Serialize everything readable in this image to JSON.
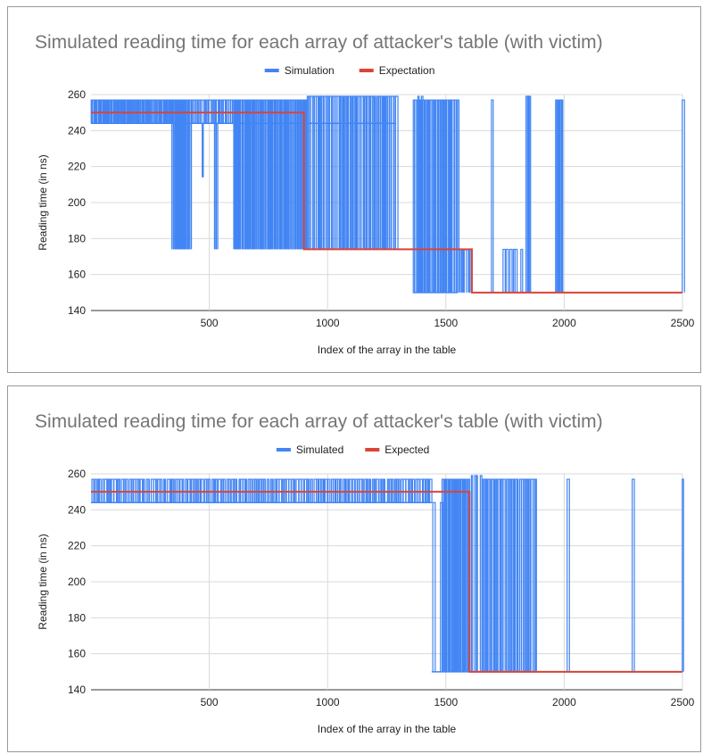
{
  "chart_data": [
    {
      "type": "line",
      "title": "Simulated reading time for each array of attacker's table (with victim)",
      "xlabel": "Index of the array in the table",
      "ylabel": "Reading time (in ns)",
      "xlim": [
        0,
        2500
      ],
      "ylim": [
        140,
        260
      ],
      "xticks": [
        500,
        1000,
        1500,
        2000,
        2500
      ],
      "yticks": [
        140,
        160,
        180,
        200,
        220,
        240,
        260
      ],
      "grid": true,
      "legend_position": "top",
      "series": [
        {
          "name": "Simulation",
          "color": "#4285F4",
          "baseline_segments": [
            {
              "x": [
                0,
                340
              ],
              "y": 244
            },
            {
              "x": [
                340,
                600
              ],
              "y": 244
            },
            {
              "x": [
                600,
                900
              ],
              "y": 244
            },
            {
              "x": [
                900,
                1290
              ],
              "y": 244
            },
            {
              "x": [
                1290,
                1360
              ],
              "y": 174
            },
            {
              "x": [
                1360,
                1550
              ],
              "y": 150
            },
            {
              "x": [
                1550,
                1610
              ],
              "y": 174
            },
            {
              "x": [
                1610,
                2500
              ],
              "y": 150
            }
          ],
          "spikes": [
            {
              "x": [
                0,
                340
              ],
              "y": [
                244,
                257
              ],
              "count": 70
            },
            {
              "x": [
                340,
                420
              ],
              "y": [
                174,
                257
              ],
              "count": 18
            },
            {
              "x": [
                470,
                470
              ],
              "y": [
                214,
                244
              ],
              "count": 1
            },
            {
              "x": [
                520,
                530
              ],
              "y": [
                174,
                244
              ],
              "count": 2
            },
            {
              "x": [
                420,
                600
              ],
              "y": [
                244,
                257
              ],
              "count": 24
            },
            {
              "x": [
                600,
                910
              ],
              "y": [
                174,
                257
              ],
              "count": 60
            },
            {
              "x": [
                910,
                1290
              ],
              "y": [
                174,
                259
              ],
              "count": 48
            },
            {
              "x": [
                1360,
                1550
              ],
              "y": [
                150,
                257
              ],
              "count": 30
            },
            {
              "x": [
                1380,
                1400
              ],
              "y": [
                150,
                259
              ],
              "count": 2
            },
            {
              "x": [
                1550,
                1610
              ],
              "y": [
                150,
                174
              ],
              "count": 6
            },
            {
              "x": [
                1690,
                1695
              ],
              "y": [
                150,
                257
              ],
              "count": 1
            },
            {
              "x": [
                1730,
                1820
              ],
              "y": [
                150,
                174
              ],
              "count": 6
            },
            {
              "x": [
                1835,
                1855
              ],
              "y": [
                150,
                259
              ],
              "count": 3
            },
            {
              "x": [
                1960,
                1990
              ],
              "y": [
                150,
                257
              ],
              "count": 6
            },
            {
              "x": [
                2498,
                2500
              ],
              "y": [
                150,
                257
              ],
              "count": 1
            }
          ]
        },
        {
          "name": "Expectation",
          "color": "#DB4437",
          "steps": [
            {
              "x": [
                0,
                900
              ],
              "y": 250
            },
            {
              "x": [
                900,
                1610
              ],
              "y": 174
            },
            {
              "x": [
                1610,
                2500
              ],
              "y": 150
            }
          ]
        }
      ]
    },
    {
      "type": "line",
      "title": "Simulated reading time for each array of attacker's table (with victim)",
      "xlabel": "Index of the array in the table",
      "ylabel": "Reading time (in ns)",
      "xlim": [
        0,
        2500
      ],
      "ylim": [
        140,
        260
      ],
      "xticks": [
        500,
        1000,
        1500,
        2000,
        2500
      ],
      "yticks": [
        140,
        160,
        180,
        200,
        220,
        240,
        260
      ],
      "grid": true,
      "legend_position": "top",
      "series": [
        {
          "name": "Simulated",
          "color": "#4285F4",
          "baseline_segments": [
            {
              "x": [
                0,
                1440
              ],
              "y": 244
            },
            {
              "x": [
                1440,
                1600
              ],
              "y": 150
            },
            {
              "x": [
                1600,
                2500
              ],
              "y": 150
            }
          ],
          "spikes": [
            {
              "x": [
                0,
                1440
              ],
              "y": [
                244,
                257
              ],
              "count": 140
            },
            {
              "x": [
                1440,
                1480
              ],
              "y": [
                150,
                244
              ],
              "count": 2
            },
            {
              "x": [
                1480,
                1600
              ],
              "y": [
                150,
                257
              ],
              "count": 20
            },
            {
              "x": [
                1600,
                1650
              ],
              "y": [
                150,
                259
              ],
              "count": 4
            },
            {
              "x": [
                1650,
                1880
              ],
              "y": [
                150,
                257
              ],
              "count": 28
            },
            {
              "x": [
                2010,
                2015
              ],
              "y": [
                150,
                257
              ],
              "count": 1
            },
            {
              "x": [
                2285,
                2290
              ],
              "y": [
                150,
                257
              ],
              "count": 1
            },
            {
              "x": [
                2498,
                2500
              ],
              "y": [
                150,
                257
              ],
              "count": 1
            }
          ]
        },
        {
          "name": "Expected",
          "color": "#DB4437",
          "steps": [
            {
              "x": [
                0,
                1600
              ],
              "y": 250
            },
            {
              "x": [
                1600,
                2500
              ],
              "y": 150
            }
          ]
        }
      ]
    }
  ]
}
